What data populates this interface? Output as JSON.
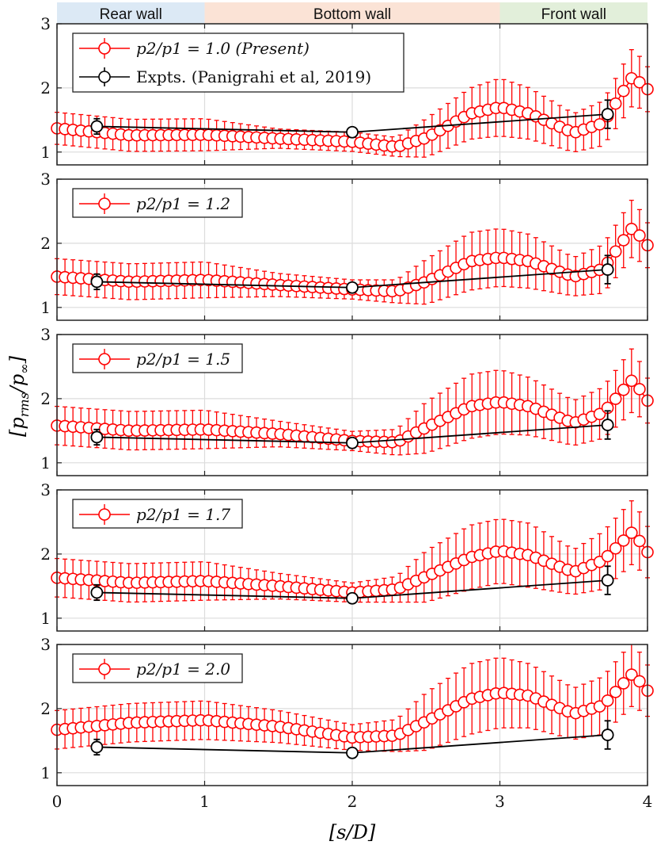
{
  "chart_data": {
    "type": "line",
    "xlabel": "[s/D]",
    "ylabel": "[p_rms/p_∞]",
    "xlim": [
      0,
      4
    ],
    "ylim": [
      0.8,
      3.0
    ],
    "xticks": [
      0,
      1,
      2,
      3,
      4
    ],
    "xtick_labels": [
      "0",
      "1",
      "2",
      "3",
      "4"
    ],
    "yticks": [
      1,
      2,
      3
    ],
    "ytick_labels": [
      "1",
      "2",
      "3"
    ],
    "grid": true,
    "regions": [
      {
        "label": "Rear wall",
        "x_start": 0,
        "x_end": 1,
        "color": "#dce9f5"
      },
      {
        "label": "Bottom wall",
        "x_start": 1,
        "x_end": 3,
        "color": "#fbe3d6"
      },
      {
        "label": "Front wall",
        "x_start": 3,
        "x_end": 4,
        "color": "#e2efda"
      }
    ],
    "colors": {
      "present": "#ff0000",
      "experiment": "#000000"
    },
    "experiment": {
      "name": "Expts. (Panigrahi et al, 2019)",
      "x": [
        0.27,
        2.0,
        3.73
      ],
      "y": [
        1.4,
        1.31,
        1.59
      ],
      "err": [
        0.12,
        0.05,
        0.22
      ]
    },
    "panels": [
      {
        "legend": "p2/p1 = 1.0 (Present)",
        "show_experiment_legend": true,
        "x": [
          0,
          0.5,
          1.0,
          1.5,
          2.0,
          2.3,
          2.5,
          2.8,
          3.0,
          3.2,
          3.5,
          3.7,
          3.9,
          4.0
        ],
        "y": [
          1.37,
          1.26,
          1.27,
          1.21,
          1.16,
          1.08,
          1.22,
          1.6,
          1.7,
          1.6,
          1.3,
          1.45,
          2.18,
          1.98
        ],
        "err": [
          0.25,
          0.25,
          0.25,
          0.15,
          0.15,
          0.15,
          0.3,
          0.4,
          0.45,
          0.4,
          0.3,
          0.35,
          0.45,
          0.35
        ]
      },
      {
        "legend": "p2/p1 = 1.2",
        "show_experiment_legend": false,
        "x": [
          0,
          0.5,
          1.0,
          1.5,
          2.0,
          2.3,
          2.5,
          2.8,
          3.0,
          3.2,
          3.5,
          3.7,
          3.9,
          4.0
        ],
        "y": [
          1.48,
          1.4,
          1.43,
          1.35,
          1.28,
          1.25,
          1.4,
          1.72,
          1.78,
          1.72,
          1.48,
          1.6,
          2.25,
          1.97
        ],
        "err": [
          0.28,
          0.28,
          0.28,
          0.18,
          0.15,
          0.18,
          0.35,
          0.45,
          0.45,
          0.42,
          0.3,
          0.38,
          0.45,
          0.35
        ]
      },
      {
        "legend": "p2/p1 = 1.5",
        "show_experiment_legend": false,
        "x": [
          0,
          0.5,
          1.0,
          1.5,
          2.0,
          2.3,
          2.5,
          2.8,
          3.0,
          3.2,
          3.5,
          3.7,
          3.9,
          4.0
        ],
        "y": [
          1.58,
          1.5,
          1.52,
          1.45,
          1.34,
          1.32,
          1.55,
          1.88,
          1.95,
          1.88,
          1.62,
          1.78,
          2.3,
          1.97
        ],
        "err": [
          0.3,
          0.3,
          0.3,
          0.2,
          0.15,
          0.2,
          0.4,
          0.5,
          0.5,
          0.45,
          0.35,
          0.4,
          0.5,
          0.35
        ]
      },
      {
        "legend": "p2/p1 = 1.7",
        "show_experiment_legend": false,
        "x": [
          0,
          0.5,
          1.0,
          1.5,
          2.0,
          2.3,
          2.5,
          2.8,
          3.0,
          3.2,
          3.5,
          3.7,
          3.9,
          4.0
        ],
        "y": [
          1.63,
          1.55,
          1.58,
          1.5,
          1.4,
          1.45,
          1.65,
          1.95,
          2.05,
          1.98,
          1.72,
          1.9,
          2.35,
          2.03
        ],
        "err": [
          0.3,
          0.3,
          0.3,
          0.2,
          0.15,
          0.2,
          0.4,
          0.5,
          0.5,
          0.5,
          0.35,
          0.45,
          0.5,
          0.4
        ]
      },
      {
        "legend": "p2/p1 = 2.0",
        "show_experiment_legend": false,
        "x": [
          0,
          0.5,
          1.0,
          1.5,
          2.0,
          2.3,
          2.5,
          2.8,
          3.0,
          3.2,
          3.5,
          3.7,
          3.9,
          4.0
        ],
        "y": [
          1.67,
          1.78,
          1.82,
          1.72,
          1.55,
          1.58,
          1.8,
          2.15,
          2.25,
          2.2,
          1.92,
          2.05,
          2.55,
          2.28
        ],
        "err": [
          0.3,
          0.3,
          0.3,
          0.25,
          0.2,
          0.25,
          0.45,
          0.55,
          0.55,
          0.5,
          0.4,
          0.45,
          0.5,
          0.4
        ]
      }
    ]
  }
}
